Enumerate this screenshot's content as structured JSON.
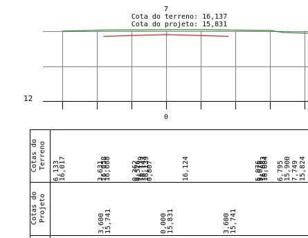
{
  "header": {
    "station": "7",
    "terrain_label": "Cota do terreno: 16,137",
    "project_label": "Cota do projeto: 15,831"
  },
  "profile": {
    "left_elevation_label": "12",
    "station_label": "0",
    "terrain_color": "#1a8c1a",
    "project_color": "#dd2222",
    "grid_color": "#7f7f7f"
  },
  "table": {
    "row_terrain_label": "Cotas do\nTerreno",
    "row_project_label": "Cotas do\nProjeto",
    "terrain_values": [
      "6,133",
      "16,017",
      "3,631",
      "16,058",
      "16,088",
      "0,362",
      "0,526",
      "16,139",
      "16,143",
      "16,139",
      "0,807",
      "16,124",
      "5,076",
      "5,076",
      "16,083",
      "16,084",
      "6,795",
      "15,900",
      "7,749",
      "15,824"
    ],
    "project_values": [
      "3,600",
      "15,741",
      "0,000",
      "15,831",
      "3,600",
      "15,741"
    ]
  }
}
